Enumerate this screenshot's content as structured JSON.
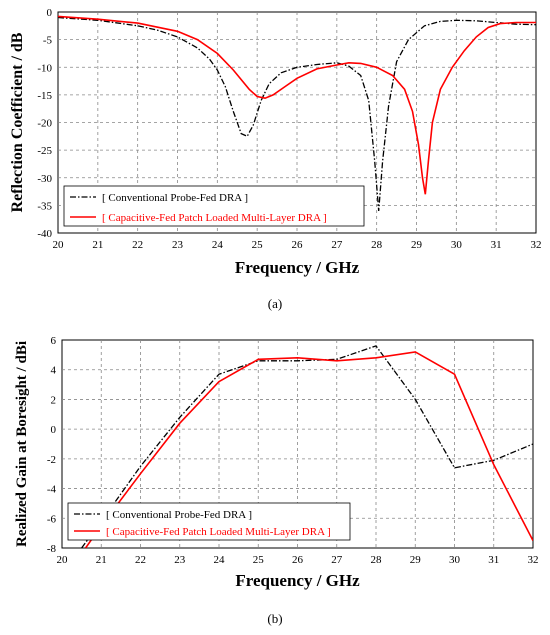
{
  "chart_data": [
    {
      "type": "line",
      "panel_label": "(a)",
      "xlabel": "Frequency / GHz",
      "ylabel": "Reflection Coefficient / dB",
      "xlim": [
        20,
        32
      ],
      "ylim": [
        -40,
        0
      ],
      "xticks": [
        20,
        21,
        22,
        23,
        24,
        25,
        26,
        27,
        28,
        29,
        30,
        31,
        32
      ],
      "yticks": [
        0,
        -5,
        -10,
        -15,
        -20,
        -25,
        -30,
        -35,
        -40
      ],
      "grid": true,
      "legend_position": "bottom-left",
      "series": [
        {
          "name": "[ Conventional Probe-Fed DRA ]",
          "color": "#000000",
          "style": "dash-dot",
          "x": [
            20,
            21,
            22,
            22.5,
            23,
            23.5,
            23.8,
            24,
            24.2,
            24.4,
            24.6,
            24.75,
            24.9,
            25.1,
            25.3,
            25.6,
            26,
            26.5,
            27,
            27.3,
            27.6,
            27.8,
            27.95,
            28.05,
            28.15,
            28.3,
            28.5,
            28.8,
            29.2,
            29.6,
            30,
            30.5,
            31,
            31.5,
            32
          ],
          "y": [
            -1,
            -1.5,
            -2.5,
            -3.3,
            -4.5,
            -6.5,
            -8.5,
            -10.5,
            -13.5,
            -18,
            -22,
            -22.5,
            -20.5,
            -16,
            -13,
            -11,
            -10,
            -9.5,
            -9.2,
            -9.8,
            -11.5,
            -16,
            -27,
            -36,
            -27,
            -17,
            -9,
            -5,
            -2.5,
            -1.7,
            -1.5,
            -1.6,
            -1.9,
            -2.2,
            -2.3
          ]
        },
        {
          "name": "[ Capacitive-Fed Patch Loaded Multi-Layer DRA ]",
          "color": "#ff0000",
          "style": "solid",
          "x": [
            20,
            21,
            22,
            23,
            23.5,
            24,
            24.4,
            24.8,
            25,
            25.2,
            25.4,
            25.7,
            26,
            26.5,
            27,
            27.3,
            27.6,
            28,
            28.4,
            28.7,
            28.9,
            29.05,
            29.15,
            29.22,
            29.3,
            29.4,
            29.6,
            29.9,
            30.2,
            30.5,
            30.8,
            31.1,
            31.5,
            32
          ],
          "y": [
            -0.8,
            -1.3,
            -2,
            -3.5,
            -5,
            -7.5,
            -10.5,
            -14,
            -15.3,
            -15.6,
            -15,
            -13.5,
            -12,
            -10.3,
            -9.6,
            -9.2,
            -9.3,
            -10,
            -11.5,
            -14,
            -18,
            -24,
            -30,
            -33,
            -27,
            -20,
            -14,
            -10,
            -7,
            -4.5,
            -2.8,
            -2.1,
            -1.9,
            -1.9
          ]
        }
      ]
    },
    {
      "type": "line",
      "panel_label": "(b)",
      "xlabel": "Frequency / GHz",
      "ylabel": "Realized Gain at Boresight / dBi",
      "xlim": [
        20,
        32
      ],
      "ylim": [
        -8,
        6
      ],
      "xticks": [
        20,
        21,
        22,
        23,
        24,
        25,
        26,
        27,
        28,
        29,
        30,
        31,
        32
      ],
      "yticks": [
        6,
        4,
        2,
        0,
        -2,
        -4,
        -6,
        -8
      ],
      "grid": true,
      "legend_position": "bottom-left",
      "series": [
        {
          "name": "[ Conventional Probe-Fed DRA ]",
          "color": "#000000",
          "style": "dash-dot",
          "x": [
            20.5,
            21,
            22,
            23,
            24,
            25,
            26,
            27,
            28,
            29,
            30,
            31,
            32
          ],
          "y": [
            -8,
            -6.2,
            -2.5,
            0.8,
            3.7,
            4.6,
            4.6,
            4.7,
            5.6,
            2,
            -2.6,
            -2.1,
            -1
          ],
          "endpoint_labels": []
        },
        {
          "name": "[ Capacitive-Fed Patch Loaded Multi-Layer DRA ]",
          "color": "#ff0000",
          "style": "solid",
          "x": [
            20.6,
            21,
            22,
            23,
            24,
            25,
            26,
            27,
            28,
            29,
            30,
            31,
            32
          ],
          "y": [
            -8,
            -6.5,
            -3,
            0.4,
            3.2,
            4.7,
            4.8,
            4.6,
            4.8,
            5.2,
            3.7,
            -2.4,
            -7.5
          ]
        }
      ]
    }
  ]
}
